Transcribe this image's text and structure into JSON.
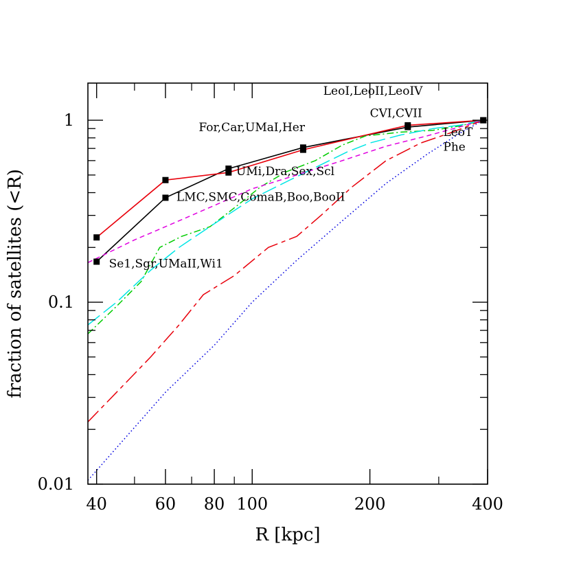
{
  "chart_data": {
    "type": "line",
    "title": "",
    "xlabel": "R [kpc]",
    "ylabel": "fraction of satellites (<R)",
    "xscale": "log",
    "yscale": "log",
    "xlim": [
      38,
      400
    ],
    "ylim": [
      0.01,
      1.6
    ],
    "xticks": [
      40,
      60,
      80,
      100,
      200,
      400
    ],
    "xtick_labels": [
      "40",
      "60",
      "80",
      "100",
      "200",
      "400"
    ],
    "yticks": [
      0.01,
      0.1,
      1
    ],
    "ytick_labels": [
      "0.01",
      "0.1",
      "1"
    ],
    "grid": false,
    "legend": "none",
    "series": [
      {
        "style": "solid-with-squares",
        "color": "#000000",
        "x": [
          40,
          60,
          87,
          135,
          250,
          390
        ],
        "y": [
          0.167,
          0.375,
          0.542,
          0.708,
          0.917,
          1.0
        ]
      },
      {
        "style": "solid-with-squares",
        "color": "#e8000b",
        "x": [
          40,
          60,
          87,
          135,
          250,
          390
        ],
        "y": [
          0.227,
          0.469,
          0.516,
          0.688,
          0.938,
          1.0
        ]
      },
      {
        "style": "dash-dot",
        "color": "#00cc00",
        "x": [
          38,
          45,
          52,
          58,
          66,
          78,
          90,
          105,
          122,
          145,
          170,
          195,
          240,
          290,
          340,
          390
        ],
        "y": [
          0.067,
          0.095,
          0.13,
          0.2,
          0.23,
          0.26,
          0.33,
          0.43,
          0.52,
          0.6,
          0.73,
          0.82,
          0.86,
          0.88,
          0.93,
          1.0
        ]
      },
      {
        "style": "long-dash",
        "color": "#00e5e5",
        "x": [
          38,
          45,
          55,
          65,
          80,
          100,
          125,
          150,
          175,
          200,
          240,
          290,
          340,
          390
        ],
        "y": [
          0.075,
          0.1,
          0.15,
          0.2,
          0.27,
          0.37,
          0.47,
          0.57,
          0.67,
          0.75,
          0.83,
          0.9,
          0.94,
          1.0
        ]
      },
      {
        "style": "short-dash",
        "color": "#e000e0",
        "x": [
          38,
          50,
          60,
          80,
          100,
          130,
          170,
          220,
          280,
          340,
          390
        ],
        "y": [
          0.165,
          0.22,
          0.26,
          0.34,
          0.42,
          0.5,
          0.6,
          0.72,
          0.82,
          0.92,
          1.0
        ]
      },
      {
        "style": "long-short-dash",
        "color": "#e8000b",
        "x": [
          38,
          45,
          55,
          65,
          75,
          90,
          110,
          130,
          150,
          180,
          220,
          270,
          320,
          390
        ],
        "y": [
          0.022,
          0.032,
          0.05,
          0.075,
          0.11,
          0.14,
          0.2,
          0.23,
          0.3,
          0.43,
          0.6,
          0.75,
          0.85,
          1.0
        ]
      },
      {
        "style": "dotted",
        "color": "#0000e0",
        "x": [
          38,
          60,
          80,
          100,
          130,
          170,
          220,
          280,
          340,
          390
        ],
        "y": [
          0.0105,
          0.032,
          0.058,
          0.1,
          0.17,
          0.28,
          0.45,
          0.65,
          0.85,
          1.0
        ]
      }
    ],
    "annotations": [
      {
        "text": "LeoI,LeoII,LeoIV",
        "x": 152,
        "y": 1.38
      },
      {
        "text": "For,Car,UMaI,Her",
        "x": 73,
        "y": 0.87
      },
      {
        "text": "CVI,CVII",
        "x": 200,
        "y": 1.04
      },
      {
        "text": "LeoT",
        "x": 308,
        "y": 0.82
      },
      {
        "text": "Phe",
        "x": 308,
        "y": 0.68
      },
      {
        "text": "UMi,Dra,Sex,Scl",
        "x": 91,
        "y": 0.5
      },
      {
        "text": "LMC,SMC,ComaB,Boo,BooII",
        "x": 64,
        "y": 0.36
      },
      {
        "text": "Se1,Sgr,UMaII,Wi1",
        "x": 43,
        "y": 0.155
      }
    ]
  }
}
